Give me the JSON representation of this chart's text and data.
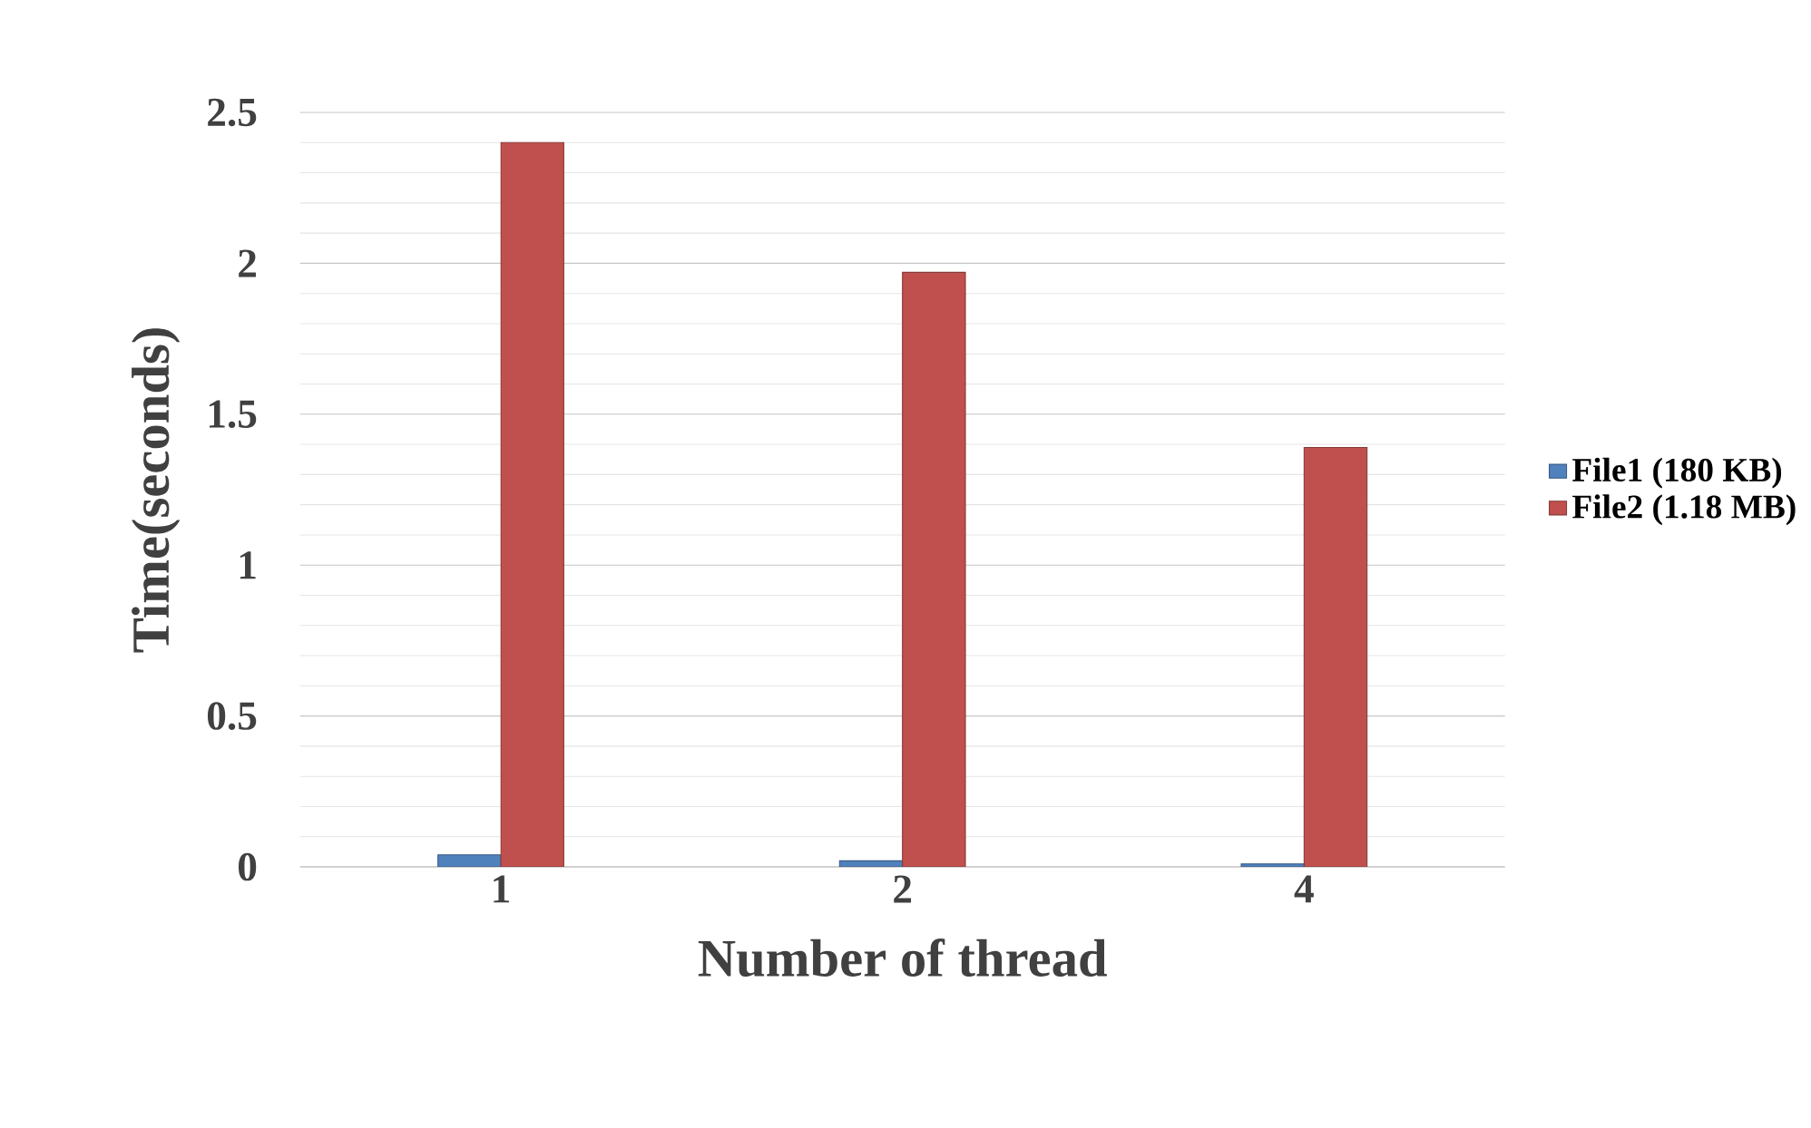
{
  "chart_data": {
    "type": "bar",
    "xlabel": "Number of thread",
    "ylabel": "Time(seconds)",
    "categories": [
      "1",
      "2",
      "4"
    ],
    "series": [
      {
        "name": "File1 (180 KB)",
        "color": "#4f81bd",
        "values": [
          0.04,
          0.02,
          0.01
        ]
      },
      {
        "name": "File2 (1.18 MB)",
        "color": "#c0504d",
        "values": [
          2.4,
          1.97,
          1.39
        ]
      }
    ],
    "ylim": [
      0,
      2.5
    ],
    "yticks": [
      0,
      0.5,
      1,
      1.5,
      2,
      2.5
    ],
    "grid": "y",
    "legend": "right"
  }
}
